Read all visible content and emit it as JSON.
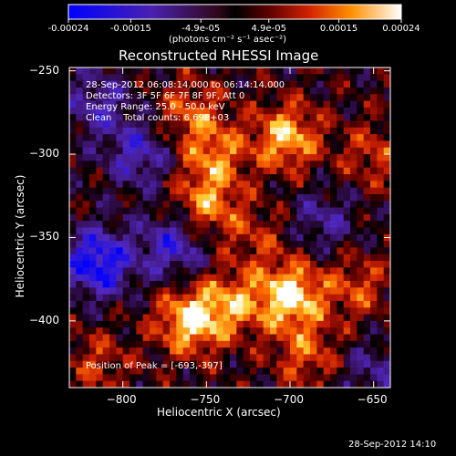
{
  "colorbar": {
    "ticks": [
      "-0.00024",
      "-0.00015",
      "-4.9e-05",
      "4.9e-05",
      "0.00015",
      "0.00024"
    ],
    "unit_label": "(photons cm⁻² s⁻¹ asec⁻²)",
    "range": [
      -0.00024,
      0.00024
    ]
  },
  "chart_data": {
    "type": "heatmap",
    "title": "Reconstructed RHESSI Image",
    "xlabel": "Heliocentric X (arcsec)",
    "ylabel": "Heliocentric Y (arcsec)",
    "xlim": [
      -832,
      -640
    ],
    "ylim": [
      -440,
      -248
    ],
    "xticks": [
      -800,
      -750,
      -700,
      -650
    ],
    "yticks": [
      -250,
      -300,
      -350,
      -400
    ],
    "xtick_labels": [
      "−800",
      "−750",
      "−700",
      "−650"
    ],
    "ytick_labels": [
      "−250",
      "−300",
      "−350",
      "−400"
    ],
    "bright_sources": [
      {
        "x": -760,
        "y": -400,
        "v": 0.00022
      },
      {
        "x": -700,
        "y": -385,
        "v": 0.00024
      },
      {
        "x": -750,
        "y": -330,
        "v": 0.00016
      },
      {
        "x": -702,
        "y": -290,
        "v": 0.0002
      },
      {
        "x": -760,
        "y": -275,
        "v": 0.00012
      },
      {
        "x": -745,
        "y": -300,
        "v": 0.00014
      },
      {
        "x": -735,
        "y": -390,
        "v": 0.00015
      },
      {
        "x": -660,
        "y": -380,
        "v": 0.00011
      },
      {
        "x": -815,
        "y": -425,
        "v": 9e-05
      },
      {
        "x": -690,
        "y": -420,
        "v": 0.00012
      },
      {
        "x": -650,
        "y": -300,
        "v": 0.0001
      },
      {
        "x": -720,
        "y": -350,
        "v": 8e-05
      }
    ],
    "dim_sources": [
      {
        "x": -815,
        "y": -365,
        "v": -0.00024
      },
      {
        "x": -770,
        "y": -355,
        "v": -0.00016
      },
      {
        "x": -790,
        "y": -300,
        "v": -0.00014
      },
      {
        "x": -680,
        "y": -340,
        "v": -0.0001
      },
      {
        "x": -815,
        "y": -270,
        "v": -0.00012
      },
      {
        "x": -650,
        "y": -430,
        "v": -9e-05
      }
    ],
    "info_lines": [
      "28-Sep-2012 06:08:14.000 to 06:14:14.000",
      "Detectors: 3F 5F 6F 7F 8F 9F, Att 0",
      "Energy Range: 25.0 - 50.0 keV",
      "Clean    Total counts: 6.69E+03"
    ],
    "peak_label": "Position of Peak = [-693,-397]",
    "peak": {
      "x": -693,
      "y": -397
    }
  },
  "footer": "28-Sep-2012 14:10"
}
